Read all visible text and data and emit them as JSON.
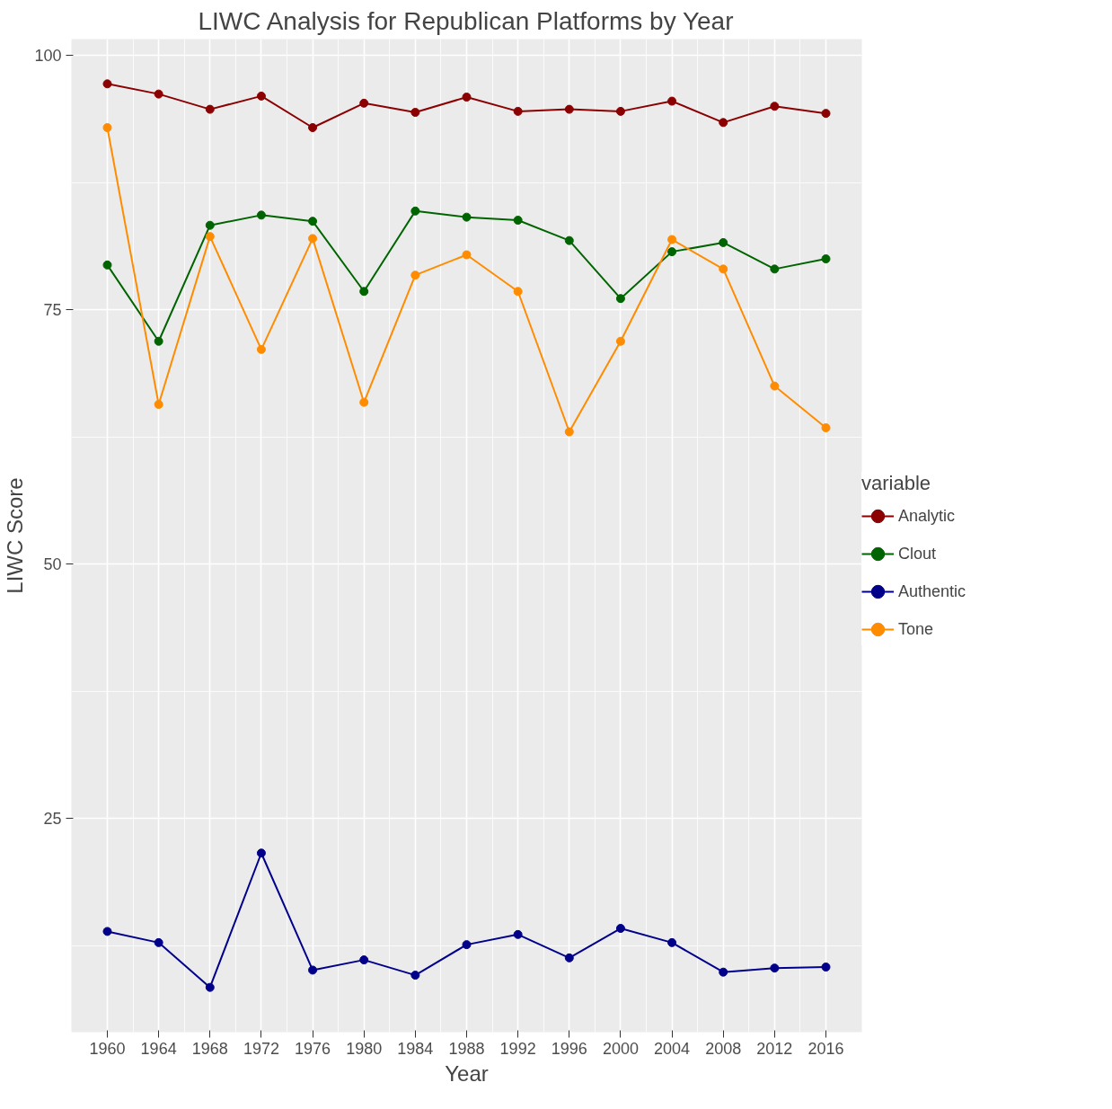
{
  "chart_data": {
    "type": "line",
    "title": "LIWC Analysis for Republican Platforms by Year",
    "xlabel": "Year",
    "ylabel": "LIWC Score",
    "legend_title": "variable",
    "x": [
      1960,
      1964,
      1968,
      1972,
      1976,
      1980,
      1984,
      1988,
      1992,
      1996,
      2000,
      2004,
      2008,
      2012,
      2016
    ],
    "series": [
      {
        "name": "Analytic",
        "color": "#8b0000",
        "values": [
          97.2,
          96.2,
          94.7,
          96.0,
          92.9,
          95.3,
          94.4,
          95.9,
          94.5,
          94.7,
          94.5,
          95.5,
          93.4,
          95.0,
          94.3
        ]
      },
      {
        "name": "Clout",
        "color": "#006400",
        "values": [
          79.4,
          71.9,
          83.3,
          84.3,
          83.7,
          76.8,
          84.7,
          84.1,
          83.8,
          81.8,
          76.1,
          80.7,
          81.6,
          79.0,
          80.0
        ]
      },
      {
        "name": "Authentic",
        "color": "#00008b",
        "values": [
          13.9,
          12.8,
          8.4,
          21.6,
          10.1,
          11.1,
          9.6,
          12.6,
          13.6,
          11.3,
          14.2,
          12.8,
          9.9,
          10.3,
          10.4
        ]
      },
      {
        "name": "Tone",
        "color": "#ff8c00",
        "values": [
          92.9,
          65.7,
          82.2,
          71.1,
          82.0,
          65.9,
          78.4,
          80.4,
          76.8,
          63.0,
          71.9,
          81.9,
          79.0,
          67.5,
          63.4
        ]
      }
    ],
    "xlim": [
      1957.2,
      2018.8
    ],
    "ylim": [
      4,
      101.6
    ],
    "xticks": [
      1960,
      1964,
      1968,
      1972,
      1976,
      1980,
      1984,
      1988,
      1992,
      1996,
      2000,
      2004,
      2008,
      2012,
      2016
    ],
    "yticks": [
      25,
      50,
      75,
      100
    ],
    "grid": true,
    "legend": "right",
    "marker": "circle",
    "line_style": "solid"
  }
}
